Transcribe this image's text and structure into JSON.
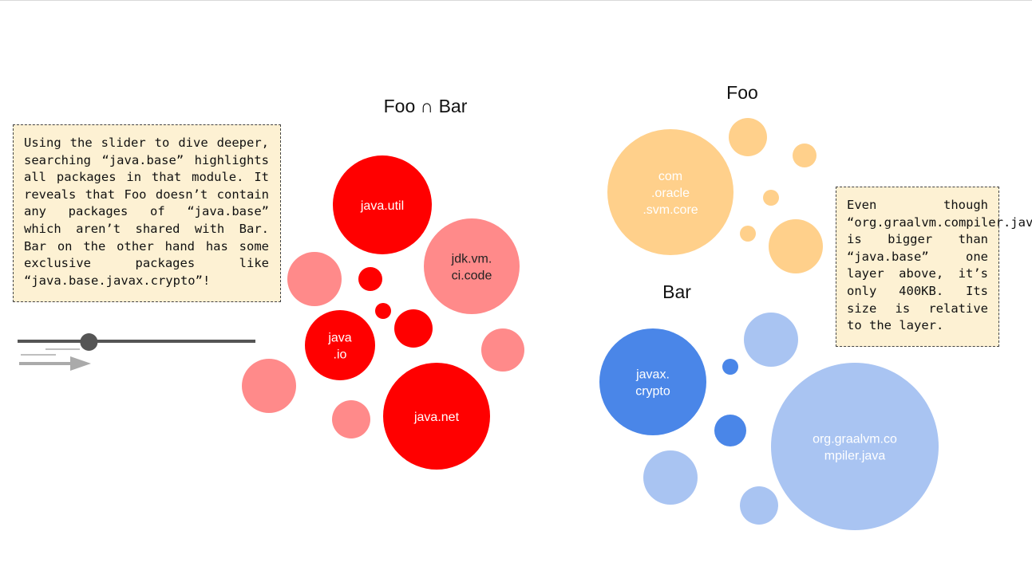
{
  "notes": {
    "left": "Using the slider to dive deeper, searching “java.base” highlights all packages in that module. It reveals that Foo doesn’t contain any packages of “java.base” which aren’t shared with Bar.  Bar on the other hand has some exclusive packages like “java.base.javax.crypto”!",
    "right": "Even though “org.graalvm.compiler.java” is bigger than “java.base” one layer above, it’s only 400KB. Its size is relative to the layer."
  },
  "titles": {
    "intersection": "Foo ∩ Bar",
    "foo": "Foo",
    "bar": "Bar"
  },
  "colors": {
    "red": "#ff0000",
    "pink": "#ff8a8a",
    "orange": "#ffd08b",
    "blue": "#4a86e8",
    "light_blue": "#a9c4f2",
    "slider_track": "#555555",
    "slider_knob": "#555555",
    "arrow": "#aaaaaa"
  },
  "slider": {
    "level": 0.3
  },
  "groups": {
    "intersection": [
      {
        "label": [
          "java.util"
        ],
        "color": "red"
      },
      {
        "label": [
          "jdk.vm.",
          "ci.code"
        ],
        "color": "pink",
        "dark": true
      },
      {
        "label": [
          "java",
          ".io"
        ],
        "color": "red"
      },
      {
        "label": [
          "java.net"
        ],
        "color": "red"
      },
      {
        "label": [],
        "color": "pink"
      },
      {
        "label": [],
        "color": "red"
      },
      {
        "label": [],
        "color": "red"
      },
      {
        "label": [],
        "color": "red"
      },
      {
        "label": [],
        "color": "pink"
      },
      {
        "label": [],
        "color": "pink"
      },
      {
        "label": [],
        "color": "pink"
      }
    ],
    "foo": [
      {
        "label": [
          "com",
          ".oracle",
          ".svm.core"
        ],
        "color": "orange"
      },
      {
        "label": [],
        "color": "orange"
      },
      {
        "label": [],
        "color": "orange"
      },
      {
        "label": [],
        "color": "orange"
      },
      {
        "label": [],
        "color": "orange"
      },
      {
        "label": [],
        "color": "orange"
      }
    ],
    "bar": [
      {
        "label": [
          "javax.",
          "crypto"
        ],
        "color": "blue"
      },
      {
        "label": [
          "org.graalvm.co",
          "mpiler.java"
        ],
        "color": "light_blue"
      },
      {
        "label": [],
        "color": "light_blue"
      },
      {
        "label": [],
        "color": "blue"
      },
      {
        "label": [],
        "color": "blue"
      },
      {
        "label": [],
        "color": "light_blue"
      },
      {
        "label": [],
        "color": "light_blue"
      }
    ]
  }
}
